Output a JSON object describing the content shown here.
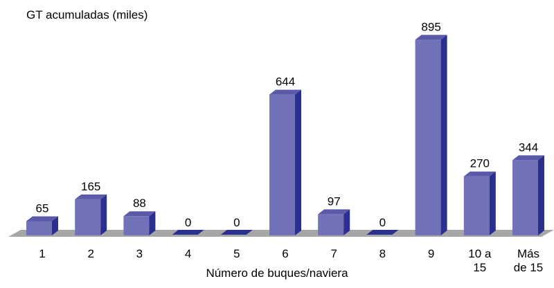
{
  "chart_data": {
    "type": "bar",
    "ylabel": "GT acumuladas (miles)",
    "xlabel": "Número de buques/naviera",
    "categories": [
      [
        "1"
      ],
      [
        "2"
      ],
      [
        "3"
      ],
      [
        "4"
      ],
      [
        "5"
      ],
      [
        "6"
      ],
      [
        "7"
      ],
      [
        "8"
      ],
      [
        "9"
      ],
      [
        "10 a",
        "15"
      ],
      [
        "Más",
        "de 15"
      ]
    ],
    "values": [
      65,
      165,
      88,
      0,
      0,
      644,
      97,
      0,
      895,
      270,
      344
    ],
    "ylim": [
      0,
      950
    ],
    "grid": false,
    "legend": "none",
    "colors": {
      "bar_front": "#7272b8",
      "bar_top": "#5a5aa8",
      "bar_side": "#2b2f8f",
      "floor": "#a6a6a6"
    }
  }
}
